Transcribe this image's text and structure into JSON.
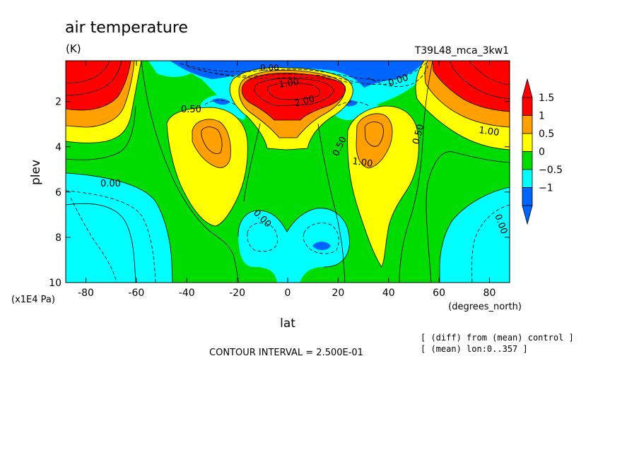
{
  "chart_data": {
    "type": "heatmap",
    "title": "air temperature",
    "units": "(K)",
    "experiment": "T39L48_mca_3kw1",
    "xlabel": "lat",
    "x_units": "(degrees_north)",
    "ylabel": "plev",
    "y_units": "(x1E4 Pa)",
    "xlim": [
      -88,
      88
    ],
    "ylim": [
      10,
      0.2
    ],
    "x_ticks": [
      -80,
      -60,
      -40,
      -20,
      0,
      20,
      40,
      60,
      80
    ],
    "y_ticks": [
      2,
      4,
      6,
      8,
      10
    ],
    "x_tick_labels": [
      "-80",
      "-60",
      "-40",
      "-20",
      "0",
      "20",
      "40",
      "60",
      "80"
    ],
    "y_tick_labels": [
      "2",
      "4",
      "6",
      "8",
      "10"
    ],
    "colorbar": {
      "levels": [
        -1,
        -0.5,
        0,
        0.5,
        1,
        1.5
      ],
      "labels": [
        "1.5",
        "1",
        "0.5",
        "0",
        "−0.5",
        "−1"
      ],
      "colors": [
        "#0064ff",
        "#00ffff",
        "#00dc00",
        "#ffff00",
        "#ffa000",
        "#ff0000"
      ],
      "under_color": "#0064ff",
      "over_color": "#ff0000"
    },
    "contour_labels": [
      "0.00",
      "0.50",
      "1.00",
      "2.00",
      "0.00",
      "0.50",
      "1.00",
      "0.00",
      "0.50",
      "1.00",
      "0.00",
      "0.00",
      "1.00",
      "0.00"
    ],
    "contour_interval_text": "CONTOUR INTERVAL = 2.500E-01",
    "notes": [
      "[ (diff) from (mean) control ]",
      "[ (mean) lon:0..357 ]"
    ],
    "features": [
      {
        "lat": -72,
        "plev": 1.2,
        "value": 2.5
      },
      {
        "lat": 76,
        "plev": 1.0,
        "value": 2.5
      },
      {
        "lat": 0,
        "plev": 1.6,
        "value": 3.0
      },
      {
        "lat": -30,
        "plev": 3.5,
        "value": 1.1
      },
      {
        "lat": 34,
        "plev": 3.2,
        "value": 1.1
      },
      {
        "lat": -70,
        "plev": 8.2,
        "value": -0.3
      },
      {
        "lat": 80,
        "plev": 8.6,
        "value": -0.3
      },
      {
        "lat": -12,
        "plev": 8.5,
        "value": -0.4
      },
      {
        "lat": 14,
        "plev": 8.5,
        "value": -0.6
      },
      {
        "lat": -5,
        "plev": 0.3,
        "value": -1.2
      }
    ]
  }
}
